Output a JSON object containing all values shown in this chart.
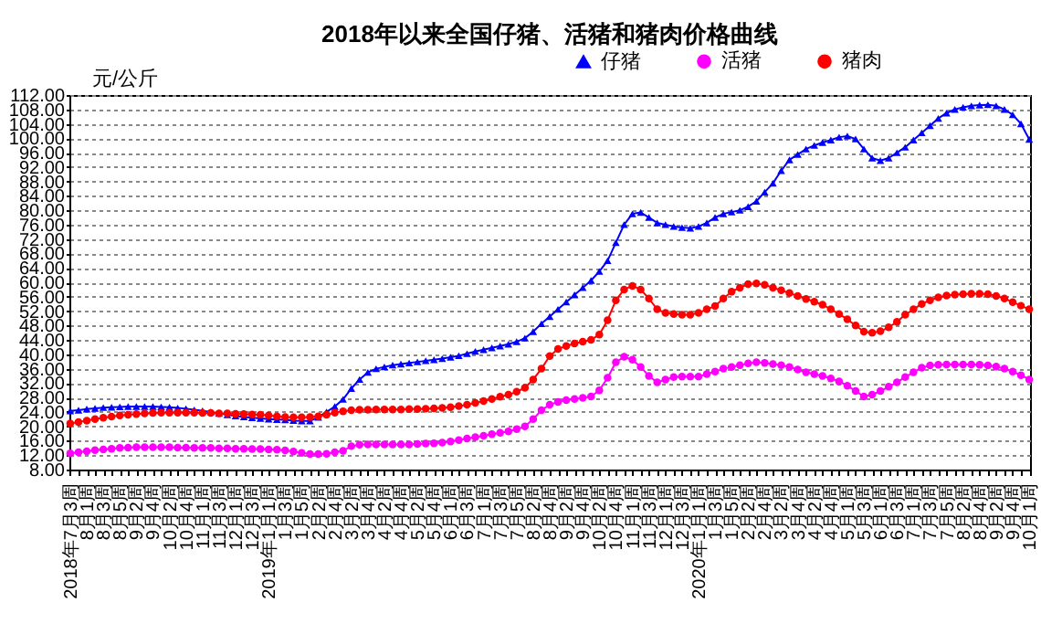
{
  "chart_data": {
    "type": "line",
    "title": "2018年以来全国仔猪、活猪和猪肉价格曲线",
    "ylabel": "元/公斤",
    "categories": [
      "2018年7月3周",
      null,
      "8月1周",
      null,
      "8月3周",
      null,
      "8月5周",
      null,
      "9月2周",
      null,
      "9月4周",
      null,
      "10月2周",
      null,
      "10月4周",
      null,
      "11月1周",
      null,
      "11月3周",
      null,
      "12月1周",
      null,
      "12月3周",
      null,
      "2019年1月1周",
      null,
      "1月3周",
      null,
      "1月5周",
      null,
      "2月2周",
      null,
      "2月4周",
      null,
      "3月2周",
      null,
      "3月4周",
      null,
      "4月2周",
      null,
      "4月4周",
      null,
      "5月2周",
      null,
      "5月4周",
      null,
      "6月1周",
      null,
      "6月3周",
      null,
      "7月1周",
      null,
      "7月3周",
      null,
      "7月5周",
      null,
      "8月2周",
      null,
      "8月4周",
      null,
      "9月2周",
      null,
      "9月4周",
      null,
      "10月2周",
      null,
      "10月4周",
      null,
      "11月1周",
      null,
      "11月3周",
      null,
      "12月1周",
      null,
      "12月3周",
      null,
      "2020年1月1周",
      null,
      "1月3周",
      null,
      "1月5周",
      null,
      "2月2周",
      null,
      "2月4周",
      null,
      "3月2周",
      null,
      "3月4周",
      null,
      "4月2周",
      null,
      "4月4周",
      null,
      "5月1周",
      null,
      "5月3周",
      null,
      "6月1周",
      null,
      "6月3周",
      null,
      "7月1周",
      null,
      "7月3周",
      null,
      "7月5周",
      null,
      "8月2周",
      null,
      "8月4周",
      null,
      "9月2周",
      null,
      "9月4周",
      null,
      "10月1周"
    ],
    "series": [
      {
        "name": "仔猪",
        "color": "#0000ff",
        "marker": "triangle",
        "values": [
          24.3,
          24.5,
          24.8,
          25.0,
          25.2,
          25.3,
          25.4,
          25.5,
          25.5,
          25.5,
          25.5,
          25.4,
          25.3,
          25.1,
          24.9,
          24.6,
          24.3,
          24.0,
          23.6,
          23.2,
          22.9,
          22.6,
          22.4,
          22.2,
          22.0,
          21.9,
          21.8,
          21.6,
          21.5,
          21.5,
          22.5,
          24.0,
          25.5,
          27.5,
          30.5,
          33.0,
          35.0,
          36.0,
          36.5,
          37.0,
          37.3,
          37.6,
          37.9,
          38.2,
          38.5,
          38.8,
          39.2,
          39.6,
          40.2,
          40.8,
          41.3,
          41.8,
          42.3,
          42.8,
          43.5,
          44.5,
          46.3,
          48.5,
          50.5,
          52.5,
          54.5,
          56.5,
          58.5,
          60.5,
          63.0,
          66.0,
          71.0,
          76.0,
          79.0,
          79.4,
          78.0,
          76.5,
          76.0,
          75.5,
          75.2,
          75.0,
          75.5,
          76.5,
          78.0,
          79.0,
          79.5,
          80.0,
          81.0,
          82.5,
          85.0,
          87.5,
          91.0,
          94.0,
          95.5,
          97.0,
          98.0,
          98.8,
          99.5,
          100.3,
          100.6,
          99.8,
          97.0,
          94.5,
          93.8,
          94.5,
          96.0,
          97.5,
          99.5,
          101.5,
          103.5,
          105.5,
          107.0,
          108.0,
          108.6,
          109.0,
          109.2,
          109.3,
          109.0,
          108.0,
          106.5,
          104.0,
          99.7
        ]
      },
      {
        "name": "活猪",
        "color": "#ff00ff",
        "marker": "circle",
        "values": [
          12.5,
          12.8,
          13.1,
          13.4,
          13.6,
          13.8,
          14.0,
          14.1,
          14.2,
          14.2,
          14.2,
          14.2,
          14.2,
          14.1,
          14.1,
          14.0,
          14.0,
          14.0,
          13.9,
          13.9,
          13.8,
          13.8,
          13.7,
          13.7,
          13.6,
          13.5,
          13.3,
          13.0,
          12.6,
          12.3,
          12.3,
          12.4,
          12.8,
          13.2,
          14.5,
          14.9,
          15.0,
          15.0,
          15.0,
          15.0,
          15.0,
          15.0,
          15.1,
          15.2,
          15.3,
          15.5,
          15.8,
          16.2,
          16.6,
          17.0,
          17.4,
          17.8,
          18.2,
          18.6,
          19.2,
          20.0,
          22.0,
          24.5,
          26.0,
          26.8,
          27.3,
          27.6,
          27.9,
          28.3,
          30.0,
          33.5,
          37.8,
          39.3,
          38.5,
          36.5,
          34.0,
          32.2,
          33.0,
          33.7,
          33.8,
          33.8,
          33.8,
          34.5,
          35.2,
          36.0,
          36.5,
          37.0,
          37.5,
          37.8,
          37.6,
          37.3,
          37.0,
          36.5,
          35.8,
          35.0,
          34.5,
          34.0,
          33.3,
          32.5,
          31.3,
          29.8,
          28.3,
          28.8,
          29.8,
          31.0,
          32.2,
          33.7,
          35.0,
          36.3,
          36.9,
          37.1,
          37.2,
          37.2,
          37.2,
          37.2,
          37.1,
          36.9,
          36.6,
          36.0,
          35.2,
          34.2,
          33.0
        ]
      },
      {
        "name": "猪肉",
        "color": "#ff0000",
        "marker": "circle",
        "values": [
          20.8,
          21.2,
          21.6,
          22.0,
          22.4,
          22.7,
          23.0,
          23.2,
          23.4,
          23.6,
          23.7,
          23.8,
          23.8,
          23.8,
          23.8,
          23.8,
          23.7,
          23.7,
          23.6,
          23.6,
          23.5,
          23.4,
          23.3,
          23.2,
          23.0,
          22.8,
          22.6,
          22.5,
          22.5,
          22.6,
          22.8,
          23.2,
          23.8,
          24.2,
          24.5,
          24.6,
          24.6,
          24.7,
          24.7,
          24.7,
          24.7,
          24.8,
          24.8,
          24.9,
          25.0,
          25.1,
          25.3,
          25.6,
          26.0,
          26.5,
          27.0,
          27.6,
          28.2,
          28.8,
          29.6,
          30.7,
          33.0,
          36.0,
          39.5,
          41.5,
          42.3,
          43.0,
          43.5,
          44.0,
          45.5,
          49.5,
          55.0,
          58.0,
          59.0,
          58.0,
          55.5,
          52.5,
          51.5,
          51.2,
          51.0,
          51.0,
          51.5,
          52.5,
          53.4,
          55.5,
          57.4,
          58.5,
          59.5,
          59.7,
          59.3,
          58.5,
          57.8,
          57.0,
          56.2,
          55.4,
          54.6,
          53.8,
          52.5,
          51.2,
          49.7,
          48.0,
          46.3,
          46.0,
          46.4,
          47.5,
          49.0,
          51.0,
          52.5,
          54.0,
          55.0,
          55.8,
          56.3,
          56.6,
          56.7,
          56.8,
          56.8,
          56.7,
          56.2,
          55.5,
          54.5,
          53.5,
          52.5
        ]
      }
    ],
    "ylim": [
      8,
      112
    ],
    "yticks": [
      {
        "value": 8,
        "label": "8.00"
      },
      {
        "value": 12,
        "label": "12.00"
      },
      {
        "value": 16,
        "label": "16.00"
      },
      {
        "value": 20,
        "label": "20.00"
      },
      {
        "value": 24,
        "label": "24.00"
      },
      {
        "value": 28,
        "label": "28.00"
      },
      {
        "value": 32,
        "label": "32.00"
      },
      {
        "value": 36,
        "label": "36.00"
      },
      {
        "value": 40,
        "label": "40.00"
      },
      {
        "value": 44,
        "label": "44.00"
      },
      {
        "value": 48,
        "label": "48.00"
      },
      {
        "value": 52,
        "label": "52.00"
      },
      {
        "value": 56,
        "label": "56.00"
      },
      {
        "value": 60,
        "label": "60.00"
      },
      {
        "value": 64,
        "label": "64.00"
      },
      {
        "value": 68,
        "label": "68.00"
      },
      {
        "value": 72,
        "label": "72.00"
      },
      {
        "value": 76,
        "label": "76.00"
      },
      {
        "value": 80,
        "label": "80.00"
      },
      {
        "value": 84,
        "label": "84.00"
      },
      {
        "value": 88,
        "label": "88.00"
      },
      {
        "value": 92,
        "label": "92.00"
      },
      {
        "value": 96,
        "label": "96.00"
      },
      {
        "value": 100,
        "label": "100.00"
      },
      {
        "value": 104,
        "label": "104.00"
      },
      {
        "value": 108,
        "label": "108.00"
      },
      {
        "value": 112,
        "label": "112.00"
      }
    ],
    "grid": "y",
    "legend": "top right",
    "line_style": "solid"
  }
}
